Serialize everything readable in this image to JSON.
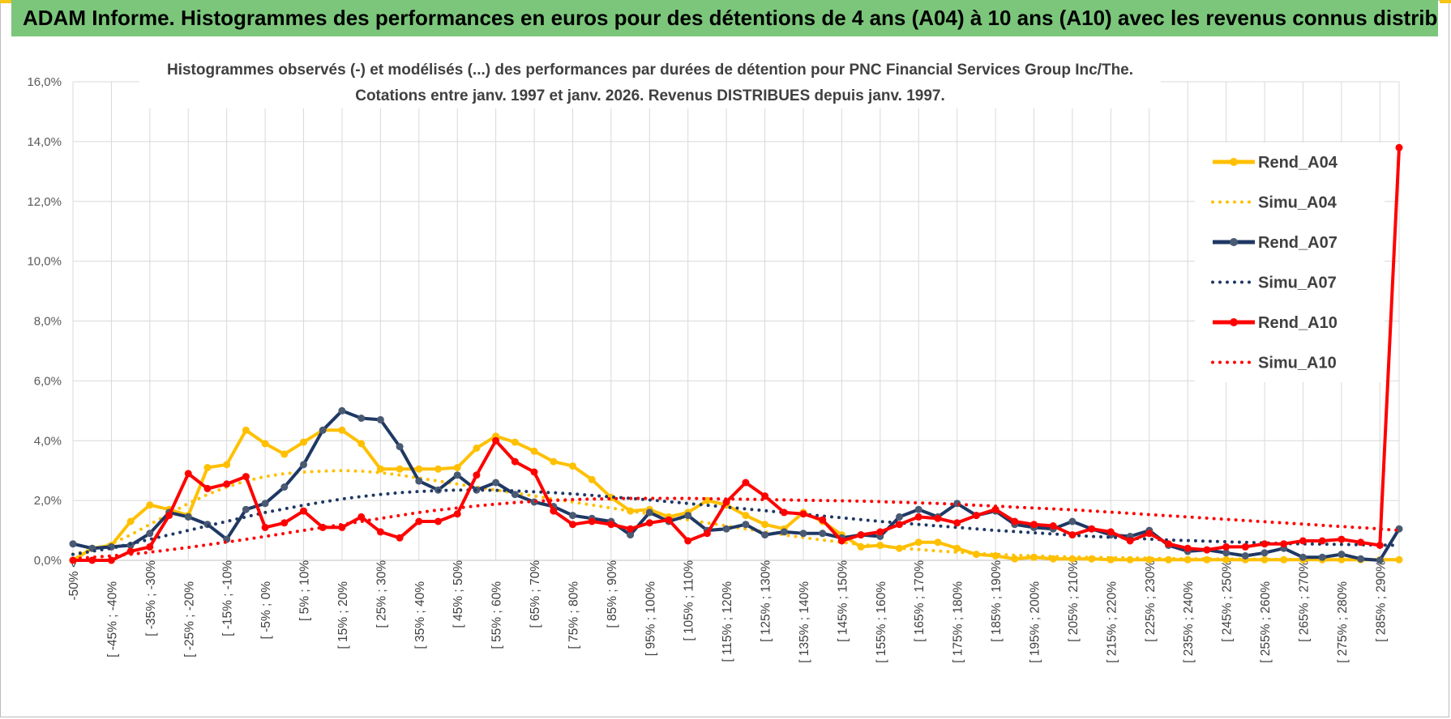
{
  "header": {
    "banner_title": "ADAM Informe. Histogrammes des performances en euros pour des détentions de 4 ans (A04) à 10 ans (A10) avec les revenus connus distribués"
  },
  "colors": {
    "banner_bg": "#7bc67b",
    "gold": "#FFC000",
    "navy": "#1F3864",
    "red": "#FF0000",
    "grid": "#d9d9d9"
  },
  "chart_data": {
    "type": "line",
    "title_line1": "Histogrammes observés (-) et modélisés (...) des performances par durées de détention pour PNC Financial Services Group Inc/The.",
    "title_line2": "Cotations entre janv. 1997 et janv. 2026. Revenus DISTRIBUES depuis janv. 1997.",
    "ylim": [
      0,
      16
    ],
    "yticks": [
      "0,0%",
      "2,0%",
      "4,0%",
      "6,0%",
      "8,0%",
      "10,0%",
      "12,0%",
      "14,0%",
      "16,0%"
    ],
    "xtick_labels": [
      "-50% <",
      "[ -45% ; -40%",
      "[ -35% ; -30%",
      "[ -25% ; -20%",
      "[ -15% ; -10%",
      "[ -5% ; 0%",
      "[ 5% ; 10%",
      "[ 15% ; 20%",
      "[ 25% ; 30%",
      "[ 35% ; 40%",
      "[ 45% ; 50%",
      "[ 55% ; 60%",
      "[ 65% ; 70%",
      "[ 75% ; 80%",
      "[ 85% ; 90%",
      "[ 95% ; 100%",
      "[ 105% ; 110%",
      "[ 115% ; 120%",
      "[ 125% ; 130%",
      "[ 135% ; 140%",
      "[ 145% ; 150%",
      "[ 155% ; 160%",
      "[ 165% ; 170%",
      "[ 175% ; 180%",
      "[ 185% ; 190%",
      "[ 195% ; 200%",
      "[ 205% ; 210%",
      "[ 215% ; 220%",
      "[ 225% ; 230%",
      "[ 235% ; 240%",
      "[ 245% ; 250%",
      "[ 255% ; 260%",
      "[ 265% ; 270%",
      "[ 275% ; 280%",
      "[ 285% ; 290%"
    ],
    "n_points": 70,
    "series": [
      {
        "name": "Rend_A04",
        "style": "solid",
        "color": "#FFC000",
        "values": [
          0,
          0.4,
          0.5,
          1.3,
          1.85,
          1.7,
          1.5,
          3.1,
          3.2,
          4.35,
          3.9,
          3.55,
          3.95,
          4.35,
          4.35,
          3.9,
          3.05,
          3.05,
          3.05,
          3.05,
          3.1,
          3.75,
          4.15,
          3.95,
          3.65,
          3.3,
          3.15,
          2.7,
          2.1,
          1.65,
          1.7,
          1.45,
          1.6,
          2.0,
          1.85,
          1.5,
          1.2,
          1.05,
          1.6,
          1.3,
          0.85,
          0.45,
          0.5,
          0.4,
          0.6,
          0.6,
          0.4,
          0.2,
          0.15,
          0.05,
          0.1,
          0.05,
          0.05,
          0.05,
          0.02,
          0.02,
          0.02,
          0.02,
          0.02,
          0.02,
          0.02,
          0.02,
          0.02,
          0.02,
          0.02,
          0.02,
          0.02,
          0.02,
          0.02,
          0.02
        ]
      },
      {
        "name": "Simu_A04",
        "style": "dotted",
        "color": "#FFC000",
        "values": [
          0.2,
          0.35,
          0.55,
          0.85,
          1.2,
          1.55,
          1.9,
          2.2,
          2.45,
          2.65,
          2.8,
          2.9,
          2.95,
          2.98,
          3.0,
          2.98,
          2.93,
          2.85,
          2.75,
          2.65,
          2.55,
          2.45,
          2.35,
          2.25,
          2.15,
          2.05,
          1.95,
          1.85,
          1.75,
          1.65,
          1.55,
          1.45,
          1.35,
          1.25,
          1.15,
          1.05,
          0.95,
          0.85,
          0.76,
          0.68,
          0.6,
          0.53,
          0.47,
          0.41,
          0.36,
          0.31,
          0.27,
          0.23,
          0.2,
          0.17,
          0.15,
          0.13,
          0.11,
          0.1,
          0.09,
          0.08,
          0.07,
          0.06,
          0.05,
          0.05,
          0.04,
          0.04,
          0.03,
          0.03,
          0.03,
          0.02,
          0.02,
          0.02,
          0.02,
          0.02
        ]
      },
      {
        "name": "Rend_A07",
        "style": "solid",
        "color": "#1F3864",
        "values": [
          0.55,
          0.4,
          0.45,
          0.5,
          0.9,
          1.6,
          1.45,
          1.2,
          0.7,
          1.7,
          1.9,
          2.45,
          3.2,
          4.35,
          5.0,
          4.75,
          4.7,
          3.8,
          2.65,
          2.35,
          2.85,
          2.35,
          2.6,
          2.2,
          1.95,
          1.8,
          1.5,
          1.4,
          1.3,
          0.85,
          1.6,
          1.3,
          1.5,
          1.0,
          1.05,
          1.2,
          0.85,
          0.95,
          0.9,
          0.9,
          0.75,
          0.85,
          0.8,
          1.45,
          1.7,
          1.45,
          1.9,
          1.5,
          1.65,
          1.2,
          1.1,
          1.05,
          1.3,
          1.05,
          0.85,
          0.8,
          1.0,
          0.5,
          0.3,
          0.35,
          0.25,
          0.15,
          0.25,
          0.4,
          0.1,
          0.1,
          0.2,
          0.05,
          0.0,
          1.05
        ]
      },
      {
        "name": "Simu_A07",
        "style": "dotted",
        "color": "#1F3864",
        "values": [
          0.2,
          0.3,
          0.4,
          0.55,
          0.7,
          0.85,
          1.0,
          1.15,
          1.3,
          1.45,
          1.6,
          1.72,
          1.84,
          1.95,
          2.05,
          2.13,
          2.2,
          2.26,
          2.3,
          2.33,
          2.35,
          2.35,
          2.34,
          2.32,
          2.29,
          2.26,
          2.22,
          2.17,
          2.12,
          2.07,
          2.02,
          1.96,
          1.9,
          1.84,
          1.78,
          1.72,
          1.66,
          1.6,
          1.54,
          1.48,
          1.42,
          1.36,
          1.3,
          1.25,
          1.2,
          1.15,
          1.1,
          1.05,
          1.0,
          0.96,
          0.92,
          0.88,
          0.84,
          0.8,
          0.77,
          0.74,
          0.71,
          0.68,
          0.66,
          0.64,
          0.62,
          0.6,
          0.58,
          0.56,
          0.55,
          0.54,
          0.53,
          0.52,
          0.51,
          0.5
        ]
      },
      {
        "name": "Rend_A10",
        "style": "solid",
        "color": "#FF0000",
        "values": [
          0.0,
          0.0,
          0.0,
          0.3,
          0.45,
          1.5,
          2.9,
          2.4,
          2.55,
          2.8,
          1.1,
          1.25,
          1.65,
          1.1,
          1.1,
          1.45,
          0.95,
          0.75,
          1.3,
          1.3,
          1.55,
          2.85,
          4.0,
          3.3,
          2.95,
          1.65,
          1.2,
          1.3,
          1.2,
          1.05,
          1.25,
          1.35,
          0.65,
          0.9,
          1.95,
          2.6,
          2.15,
          1.6,
          1.55,
          1.35,
          0.65,
          0.85,
          0.95,
          1.2,
          1.45,
          1.4,
          1.25,
          1.5,
          1.7,
          1.3,
          1.2,
          1.15,
          0.85,
          1.05,
          0.95,
          0.65,
          0.9,
          0.55,
          0.4,
          0.35,
          0.45,
          0.45,
          0.55,
          0.55,
          0.65,
          0.65,
          0.7,
          0.6,
          0.5,
          13.8
        ]
      },
      {
        "name": "Simu_A10",
        "style": "dotted",
        "color": "#FF0000",
        "values": [
          0.05,
          0.1,
          0.15,
          0.2,
          0.27,
          0.35,
          0.43,
          0.52,
          0.61,
          0.7,
          0.8,
          0.9,
          1.0,
          1.1,
          1.2,
          1.3,
          1.4,
          1.5,
          1.6,
          1.68,
          1.75,
          1.82,
          1.88,
          1.93,
          1.97,
          2.0,
          2.03,
          2.05,
          2.06,
          2.07,
          2.07,
          2.07,
          2.07,
          2.06,
          2.05,
          2.04,
          2.03,
          2.02,
          2.01,
          2.0,
          1.99,
          1.98,
          1.96,
          1.94,
          1.92,
          1.9,
          1.87,
          1.84,
          1.81,
          1.78,
          1.75,
          1.72,
          1.69,
          1.65,
          1.61,
          1.57,
          1.53,
          1.49,
          1.45,
          1.41,
          1.37,
          1.33,
          1.29,
          1.25,
          1.21,
          1.17,
          1.13,
          1.09,
          1.05,
          1.0
        ]
      }
    ],
    "legend": [
      "Rend_A04",
      "Simu_A04",
      "Rend_A07",
      "Simu_A07",
      "Rend_A10",
      "Simu_A10"
    ],
    "legend_position": "top-right"
  }
}
